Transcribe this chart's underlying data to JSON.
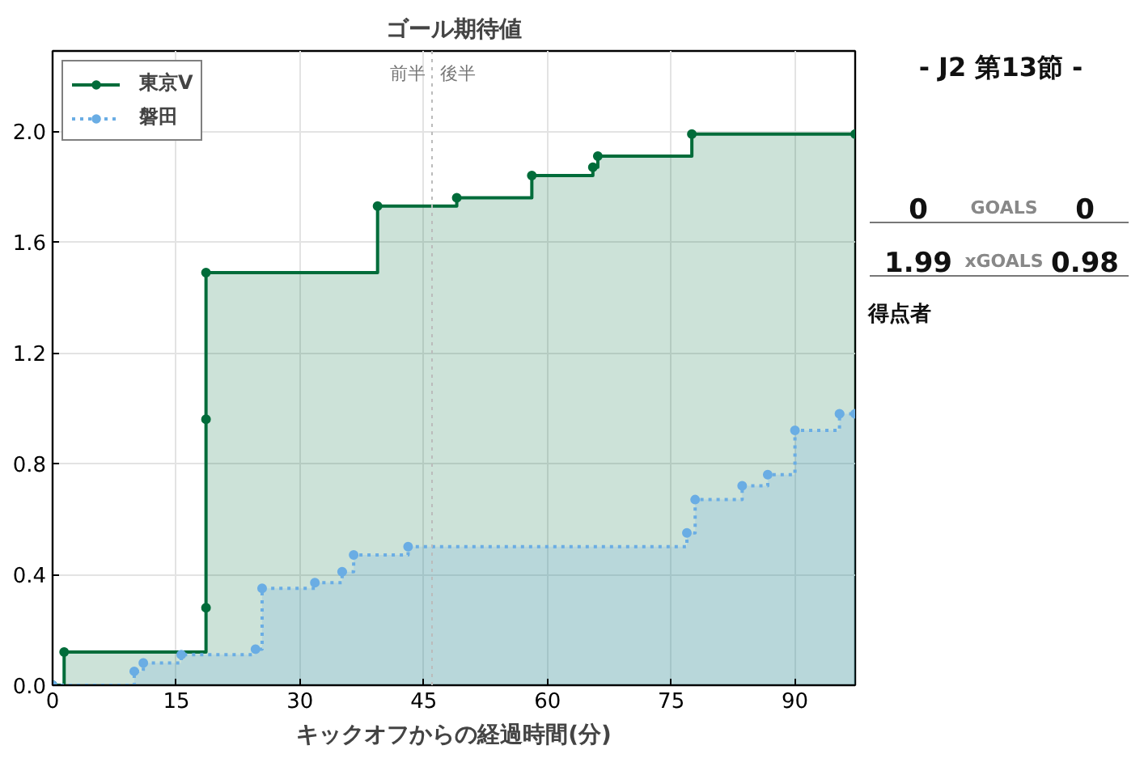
{
  "chart_data": [
    {
      "type": "step",
      "title": "ゴール期待値",
      "xlabel": "キックオフからの経過時間(分)",
      "xlim": [
        0,
        97.3
      ],
      "xticks": [
        0,
        15,
        30,
        45,
        60,
        75,
        90
      ],
      "ylim": [
        0,
        2.29
      ],
      "yticks": [
        {
          "value": 0,
          "label": "0.0"
        },
        0.4,
        0.8,
        1.2,
        1.6,
        {
          "value": 2,
          "label": "2.0"
        }
      ],
      "grid": true,
      "legend": "top left",
      "ref_lines": [
        {
          "axis": "x",
          "value": 46,
          "color": "#bbbbbb",
          "line_style": "dotted"
        }
      ],
      "annotations": [
        "前半",
        "後半"
      ],
      "series": [
        {
          "name": "東京V",
          "color": "#006c3a",
          "marker": "circle",
          "line_style": "solid",
          "x": [
            0,
            1.4,
            18.6,
            18.6,
            18.6,
            39.4,
            49.0,
            58.1,
            65.5,
            66.1,
            77.5,
            97.3
          ],
          "values": [
            0,
            0.12,
            0.28,
            0.96,
            1.49,
            1.73,
            1.76,
            1.84,
            1.87,
            1.91,
            1.99,
            1.99
          ]
        },
        {
          "name": "磐田",
          "color": "#6aade4",
          "marker": "circle",
          "line_style": "dotted",
          "x": [
            0,
            9.9,
            11.0,
            15.6,
            24.6,
            25.4,
            31.8,
            35.1,
            36.5,
            43.1,
            76.9,
            77.9,
            83.6,
            86.7,
            90.0,
            95.4,
            97.3
          ],
          "values": [
            0,
            0.05,
            0.08,
            0.11,
            0.13,
            0.35,
            0.37,
            0.41,
            0.47,
            0.5,
            0.55,
            0.67,
            0.72,
            0.76,
            0.92,
            0.98,
            0.98
          ]
        }
      ]
    },
    {
      "type": "other",
      "title": "- J2 第13節 -",
      "annotations": [
        "0",
        "GOALS",
        "0",
        "1.99",
        "xGOALS",
        "0.98",
        "得点者"
      ]
    }
  ]
}
